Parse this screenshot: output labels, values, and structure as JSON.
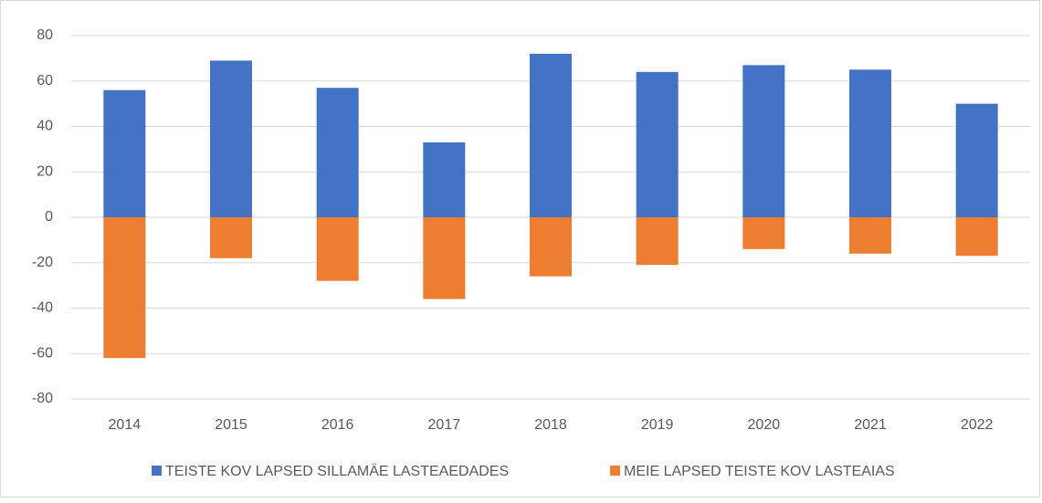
{
  "chart_data": {
    "type": "bar",
    "stacked": true,
    "categories": [
      "2014",
      "2015",
      "2016",
      "2017",
      "2018",
      "2019",
      "2020",
      "2021",
      "2022"
    ],
    "series": [
      {
        "name": "TEISTE KOV LAPSED SILLAMÄE LASTEAEDADES",
        "color": "#4472c4",
        "values": [
          56,
          69,
          57,
          33,
          72,
          64,
          67,
          65,
          50
        ]
      },
      {
        "name": "MEIE LAPSED TEISTE KOV LASTEAIAS",
        "color": "#ed7d31",
        "values": [
          -62,
          -18,
          -28,
          -36,
          -26,
          -21,
          -14,
          -16,
          -17
        ]
      }
    ],
    "ylim": [
      -80,
      80
    ],
    "yticks": [
      -80,
      -60,
      -40,
      -20,
      0,
      20,
      40,
      60,
      80
    ],
    "grid": true,
    "legend": "bottom"
  }
}
